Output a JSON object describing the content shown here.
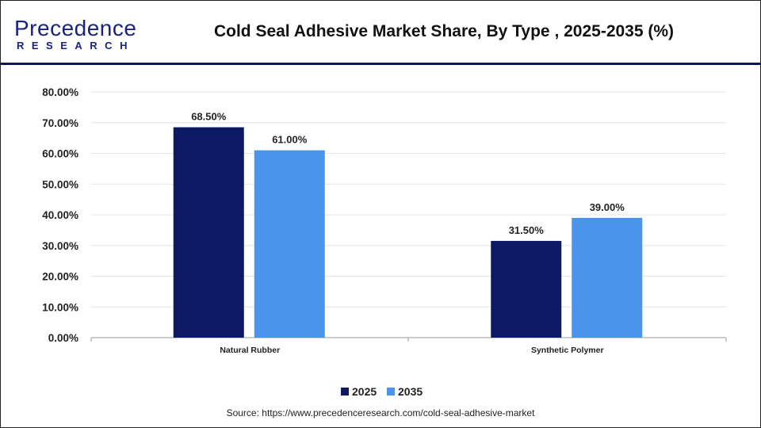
{
  "header": {
    "logo_text": "Precedence",
    "logo_sub": "RESEARCH",
    "title": "Cold Seal Adhesive Market Share, By Type , 2025-2035 (%)"
  },
  "source": "Source: https://www.precedenceresearch.com/cold-seal-adhesive-market",
  "chart_data": {
    "type": "bar",
    "title": "Cold Seal Adhesive Market Share, By Type , 2025-2035 (%)",
    "categories": [
      "Natural Rubber",
      "Synthetic Polymer"
    ],
    "series": [
      {
        "name": "2025",
        "values": [
          68.5,
          31.5
        ],
        "color": "#0c1a66"
      },
      {
        "name": "2035",
        "values": [
          61.0,
          39.0
        ],
        "color": "#4a94ec"
      }
    ],
    "data_labels": [
      [
        "68.50%",
        "31.50%"
      ],
      [
        "61.00%",
        "39.00%"
      ]
    ],
    "ylim": [
      0,
      80
    ],
    "yticks": [
      "0.00%",
      "10.00%",
      "20.00%",
      "30.00%",
      "40.00%",
      "50.00%",
      "60.00%",
      "70.00%",
      "80.00%"
    ],
    "grid": true,
    "legend": "bottom",
    "xlabel": "",
    "ylabel": ""
  }
}
